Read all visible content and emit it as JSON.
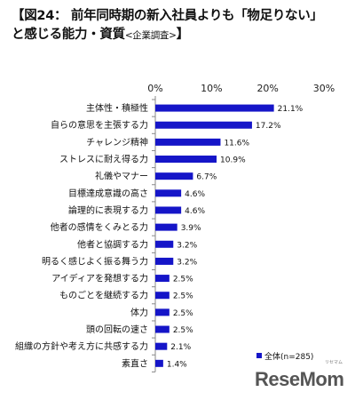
{
  "title": {
    "line1": "【図24： 前年同時期の新入社員よりも「物足りない」",
    "line2": "と感じる能力・資質",
    "line2_sub": "<企業調査>",
    "line2_close": "】"
  },
  "watermark": {
    "text": "ReseMom",
    "kana": "リセマム"
  },
  "colors": {
    "bar": "#1515c8",
    "axis": "#888888",
    "legend_marker": "#1515c8"
  },
  "chart_data": {
    "type": "bar",
    "orientation": "horizontal",
    "categories": [
      "主体性・積極性",
      "自らの意思を主張する力",
      "チャレンジ精神",
      "ストレスに耐え得る力",
      "礼儀やマナー",
      "目標達成意識の高さ",
      "論理的に表現する力",
      "他者の感情をくみとる力",
      "他者と協調する力",
      "明るく感じよく振る舞う力",
      "アイディアを発想する力",
      "ものごとを継続する力",
      "体力",
      "頭の回転の速さ",
      "組織の方針や考え方に共感する力",
      "素直さ"
    ],
    "series": [
      {
        "name": "全体(n=285)",
        "values": [
          21.1,
          17.2,
          11.6,
          10.9,
          6.7,
          4.6,
          4.6,
          3.9,
          3.2,
          3.2,
          2.5,
          2.5,
          2.5,
          2.5,
          2.1,
          1.4
        ]
      }
    ],
    "value_labels": [
      "21.1%",
      "17.2%",
      "11.6%",
      "10.9%",
      "6.7%",
      "4.6%",
      "4.6%",
      "3.9%",
      "3.2%",
      "3.2%",
      "2.5%",
      "2.5%",
      "2.5%",
      "2.5%",
      "2.1%",
      "1.4%"
    ],
    "xlim": [
      0,
      30
    ],
    "xticks": [
      0,
      10,
      20,
      30
    ],
    "xtick_labels": [
      "0%",
      "10%",
      "20%",
      "30%"
    ],
    "legend_position": "bottom-right",
    "grid": false
  }
}
